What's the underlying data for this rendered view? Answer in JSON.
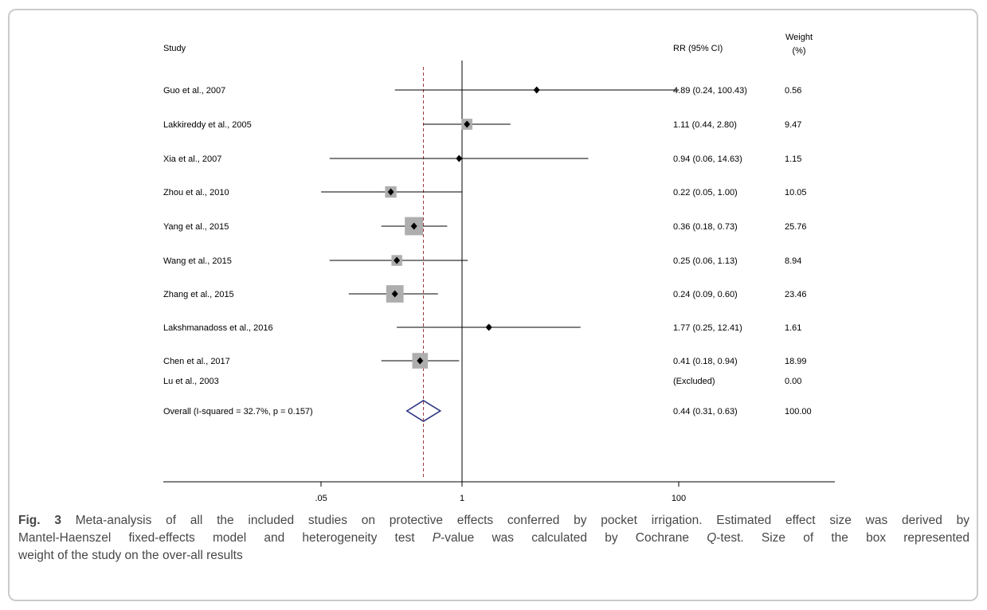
{
  "chart_data": {
    "type": "forest",
    "columns": {
      "study": "Study",
      "rr_ci": "RR (95% CI)",
      "weight_line1": "Weight",
      "weight_line2": "(%)"
    },
    "x_axis": {
      "scale": "log",
      "ticks": [
        {
          "label": ".05",
          "value": 0.05
        },
        {
          "label": "1",
          "value": 1
        },
        {
          "label": "100",
          "value": 100
        }
      ],
      "null_line": 1,
      "overall_line": 0.44
    },
    "studies": [
      {
        "label": "Guo et al., 2007",
        "rr": 4.89,
        "lower": 0.24,
        "upper": 100.43,
        "rr_ci": "4.89 (0.24, 100.43)",
        "weight": "0.56",
        "weight_value": 0.56
      },
      {
        "label": "Lakkireddy et al., 2005",
        "rr": 1.11,
        "lower": 0.44,
        "upper": 2.8,
        "rr_ci": "1.11 (0.44, 2.80)",
        "weight": "9.47",
        "weight_value": 9.47
      },
      {
        "label": "Xia et al., 2007",
        "rr": 0.94,
        "lower": 0.06,
        "upper": 14.63,
        "rr_ci": "0.94 (0.06, 14.63)",
        "weight": "1.15",
        "weight_value": 1.15
      },
      {
        "label": "Zhou et al., 2010",
        "rr": 0.22,
        "lower": 0.05,
        "upper": 1.0,
        "rr_ci": "0.22 (0.05, 1.00)",
        "weight": "10.05",
        "weight_value": 10.05
      },
      {
        "label": "Yang et al., 2015",
        "rr": 0.36,
        "lower": 0.18,
        "upper": 0.73,
        "rr_ci": "0.36 (0.18, 0.73)",
        "weight": "25.76",
        "weight_value": 25.76
      },
      {
        "label": "Wang et al., 2015",
        "rr": 0.25,
        "lower": 0.06,
        "upper": 1.13,
        "rr_ci": "0.25 (0.06, 1.13)",
        "weight": "8.94",
        "weight_value": 8.94
      },
      {
        "label": "Zhang et al., 2015",
        "rr": 0.24,
        "lower": 0.09,
        "upper": 0.6,
        "rr_ci": "0.24 (0.09, 0.60)",
        "weight": "23.46",
        "weight_value": 23.46
      },
      {
        "label": "Lakshmanadoss et al., 2016",
        "rr": 1.77,
        "lower": 0.25,
        "upper": 12.41,
        "rr_ci": "1.77 (0.25, 12.41)",
        "weight": "1.61",
        "weight_value": 1.61
      },
      {
        "label": "Chen et al., 2017",
        "rr": 0.41,
        "lower": 0.18,
        "upper": 0.94,
        "rr_ci": "0.41 (0.18, 0.94)",
        "weight": "18.99",
        "weight_value": 18.99
      },
      {
        "label": "Lu et al., 2003",
        "rr": null,
        "lower": null,
        "upper": null,
        "rr_ci": "(Excluded)",
        "weight": "0.00",
        "weight_value": 0
      }
    ],
    "overall": {
      "label": "Overall  (I-squared = 32.7%, p = 0.157)",
      "rr": 0.44,
      "lower": 0.31,
      "upper": 0.63,
      "rr_ci": "0.44 (0.31, 0.63)",
      "weight": "100.00",
      "i_squared": "32.7%",
      "p_value": "0.157"
    },
    "colors": {
      "weight_box": "#aeaeae",
      "point_marker": "#000000",
      "ci_line": "#000000",
      "overall_diamond_stroke": "#2a3580",
      "overall_dashed_line": "#9e3a3e",
      "axis": "#000000"
    }
  },
  "caption": {
    "line1_bold": "Fig. 3",
    "line1_text": " Meta-analysis of all the included studies on protective effects conferred by pocket irrigation. Estimated effect size was derived by",
    "line2_text1": "Mantel-Haenszel fixed-effects model and heterogeneity test ",
    "line2_italic1": "P",
    "line2_text2": "-value was calculated by Cochrane ",
    "line2_italic2": "Q",
    "line2_text3": "-test. Size of the box represented",
    "line3_text": "weight of the study on the over-all results"
  }
}
